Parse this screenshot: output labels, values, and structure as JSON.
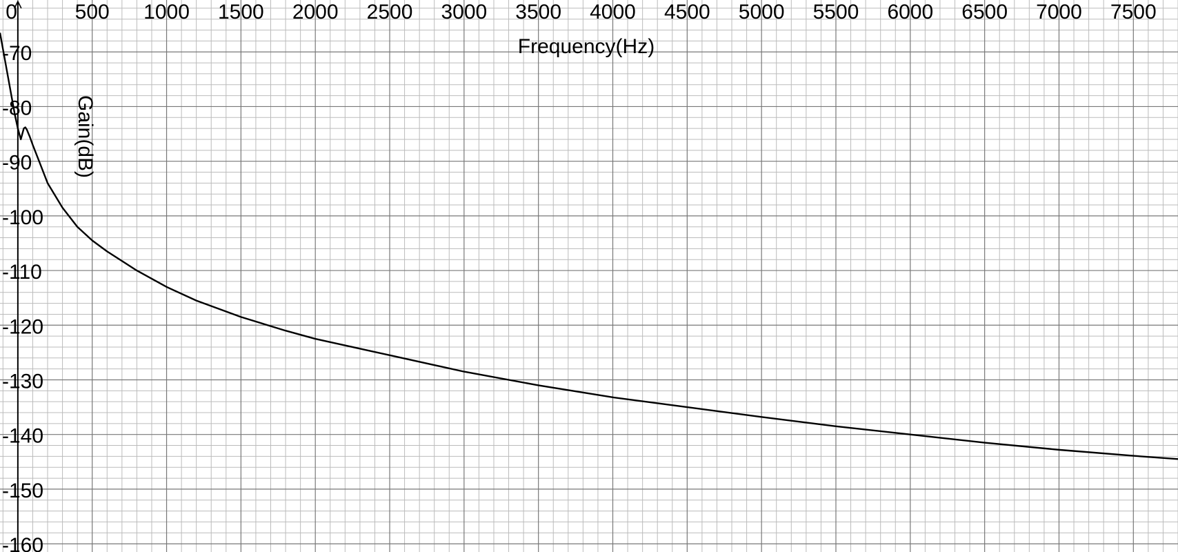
{
  "chart_data": {
    "type": "line",
    "title": "",
    "xlabel": "Frequency(Hz)",
    "ylabel": "Gain(dB)",
    "xlim": [
      -120,
      7800
    ],
    "ylim": [
      -161.5,
      -60.5
    ],
    "x_ticks": [
      0,
      500,
      1000,
      1500,
      2000,
      2500,
      3000,
      3500,
      4000,
      4500,
      5000,
      5500,
      6000,
      6500,
      7000,
      7500
    ],
    "x_tick_labels": [
      "0",
      "500",
      "1000",
      "1500",
      "2000",
      "2500",
      "3000",
      "3500",
      "4000",
      "4500",
      "5000",
      "5500",
      "6000",
      "6500",
      "7000",
      "7500"
    ],
    "y_ticks": [
      -70,
      -80,
      -90,
      -100,
      -110,
      -120,
      -130,
      -140,
      -150,
      -160
    ],
    "y_tick_labels": [
      "-70",
      "-80",
      "-90",
      "-100",
      "-110",
      "-120",
      "-130",
      "-140",
      "-150",
      "-160"
    ],
    "x_minor_step": 100,
    "y_minor_step": 2,
    "grid": true,
    "colors": {
      "line": "#000000",
      "major_grid": "#777777",
      "minor_grid": "#bbbbbb",
      "axis": "#000000"
    },
    "series": [
      {
        "x": [
          -120,
          -100,
          -80,
          -60,
          -40,
          -20,
          0,
          20,
          40,
          50,
          60,
          80,
          100,
          150,
          200,
          300,
          400,
          500,
          600,
          800,
          1000,
          1200,
          1500,
          1800,
          2000,
          2500,
          3000,
          3500,
          4000,
          4500,
          5000,
          5500,
          6000,
          6500,
          7000,
          7500,
          7800
        ],
        "y": [
          -66.5,
          -69.5,
          -72.5,
          -75.5,
          -78.5,
          -81.5,
          -84.0,
          -86.0,
          -84.0,
          -83.8,
          -84.2,
          -85.5,
          -87.0,
          -90.5,
          -94.0,
          -98.5,
          -102.0,
          -104.5,
          -106.5,
          -110.0,
          -113.0,
          -115.5,
          -118.5,
          -121.0,
          -122.5,
          -125.5,
          -128.5,
          -131.0,
          -133.2,
          -135.0,
          -136.8,
          -138.5,
          -140.0,
          -141.5,
          -142.8,
          -143.9,
          -144.5
        ]
      }
    ]
  }
}
